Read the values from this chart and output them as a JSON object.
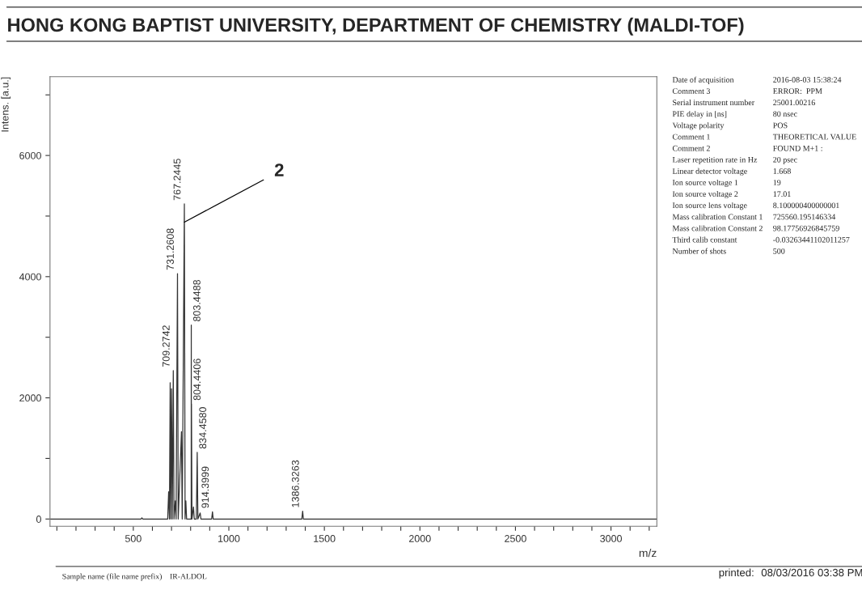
{
  "chart_data": [
    {
      "type": "line",
      "title": "HONG KONG BAPTIST UNIVERSITY, DEPARTMENT OF CHEMISTRY (MALDI-TOF)",
      "xlabel": "m/z",
      "ylabel": "Intens. [a.u.]",
      "series": [
        {
          "color": "#333333",
          "x": [
            64,
            540,
            545,
            550,
            680,
            685,
            689,
            693,
            696,
            700,
            704,
            709.2742,
            713,
            720,
            724,
            731.2608,
            735,
            752,
            756,
            767.2445,
            771,
            775,
            779,
            803,
            803.4488,
            803.9,
            804.4406,
            807,
            815,
            819,
            830,
            834.458,
            838,
            850,
            854,
            910,
            914.3999,
            918,
            1382,
            1386.3263,
            1390,
            3240
          ],
          "values": [
            0,
            0,
            20,
            0,
            0,
            450,
            0,
            2250,
            0,
            2150,
            0,
            2450,
            0,
            300,
            0,
            4050,
            0,
            1440,
            0,
            5200,
            0,
            300,
            0,
            0,
            3200,
            0,
            1900,
            0,
            200,
            0,
            0,
            1100,
            0,
            100,
            0,
            0,
            120,
            0,
            0,
            130,
            0,
            0
          ]
        }
      ],
      "xlim": [
        64,
        3240
      ],
      "ylim": [
        -120,
        7300
      ],
      "xticks": [
        {
          "value": 100,
          "label": null
        },
        {
          "value": 200,
          "label": null
        },
        {
          "value": 300,
          "label": null
        },
        {
          "value": 400,
          "label": null
        },
        500,
        {
          "value": 600,
          "label": null
        },
        {
          "value": 700,
          "label": null
        },
        {
          "value": 800,
          "label": null
        },
        {
          "value": 900,
          "label": null
        },
        1000,
        {
          "value": 1100,
          "label": null
        },
        {
          "value": 1200,
          "label": null
        },
        {
          "value": 1300,
          "label": null
        },
        {
          "value": 1400,
          "label": null
        },
        1500,
        {
          "value": 1600,
          "label": null
        },
        {
          "value": 1700,
          "label": null
        },
        {
          "value": 1800,
          "label": null
        },
        {
          "value": 1900,
          "label": null
        },
        2000,
        {
          "value": 2100,
          "label": null
        },
        {
          "value": 2200,
          "label": null
        },
        {
          "value": 2300,
          "label": null
        },
        {
          "value": 2400,
          "label": null
        },
        2500,
        {
          "value": 2600,
          "label": null
        },
        {
          "value": 2700,
          "label": null
        },
        {
          "value": 2800,
          "label": null
        },
        {
          "value": 2900,
          "label": null
        },
        3000,
        {
          "value": 3100,
          "label": null
        },
        {
          "value": 3200,
          "label": null
        }
      ],
      "yticks": [
        0,
        {
          "value": 1000,
          "label": null
        },
        2000,
        {
          "value": 3000,
          "label": null
        },
        4000,
        {
          "value": 5000,
          "label": null
        },
        6000,
        {
          "value": 7000,
          "label": null
        }
      ],
      "grid": false,
      "marker": "none",
      "line_style": "solid",
      "annotations": [
        {
          "text": "709.2742",
          "x": 709.2742,
          "y": 2450
        },
        {
          "text": "731.2608",
          "x": 731.2608,
          "y": 4050
        },
        {
          "text": "767.2445",
          "x": 767.2445,
          "y": 5200
        },
        {
          "text": "803.4488",
          "x": 803.4488,
          "y": 3200
        },
        {
          "text": "804.4406",
          "x": 804.4406,
          "y": 1900
        },
        {
          "text": "834.4580",
          "x": 834.458,
          "y": 1100
        },
        {
          "text": "914.3999",
          "x": 914.3999,
          "y": 120
        },
        {
          "text": "1386.3263",
          "x": 1386.3263,
          "y": 130
        },
        {
          "text": "2",
          "x": 767.2445,
          "y": 4900
        },
        "Sample name (file name prefix)",
        "IR-ALDOL",
        "printed:",
        "08/03/2016 03:38 PM"
      ]
    },
    {
      "type": "other",
      "annotations": [
        "Date of acquisition",
        "2016-08-03 15:38:24",
        "Comment 3",
        "ERROR:  PPM",
        "Serial instrument number",
        "25001.00216",
        "PIE delay in [ns]",
        "80 nsec",
        "Voltage polarity",
        "POS",
        "Comment 1",
        "THEORETICAL VALUE",
        "Comment 2",
        "FOUND M+1 :",
        "Laser repetition rate in Hz",
        "20 psec",
        "Linear detector voltage",
        "1.668",
        "Ion source voltage 1",
        "19",
        "Ion source voltage 2",
        "17.01",
        "Ion source lens voltage",
        "8.100000400000001",
        "Mass calibration Constant 1",
        "725560.195146334",
        "Mass calibration Constant 2",
        "98.17756926845759",
        "Third calib constant",
        "-0.03263441102011257",
        "Number of shots",
        "500"
      ]
    }
  ]
}
